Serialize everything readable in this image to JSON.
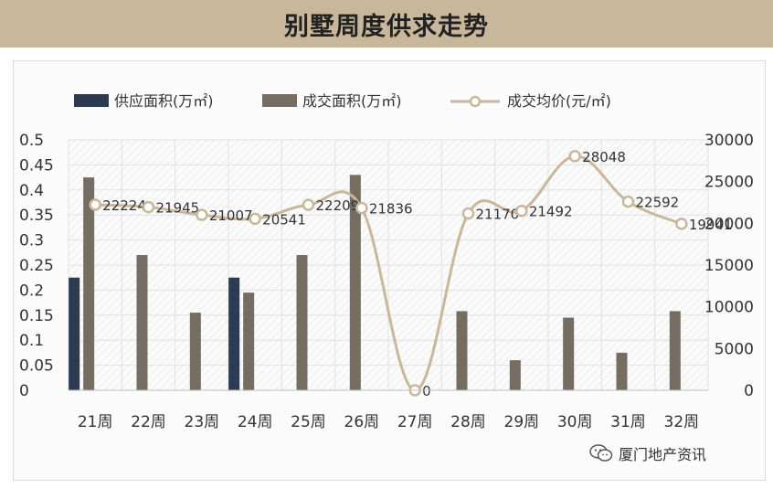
{
  "banner": {
    "title": "别墅周度供求走势"
  },
  "chart_data": {
    "type": "bar",
    "categories": [
      "21周",
      "22周",
      "23周",
      "24周",
      "25周",
      "26周",
      "27周",
      "28周",
      "29周",
      "30周",
      "31周",
      "32周"
    ],
    "series": [
      {
        "name": "供应面积(万㎡)",
        "type": "bar",
        "axis": "left",
        "color": "#2e3a52",
        "values": [
          0.225,
          0,
          0,
          0.225,
          0,
          0,
          0,
          0,
          0,
          0,
          0,
          0
        ]
      },
      {
        "name": "成交面积(万㎡)",
        "type": "bar",
        "axis": "left",
        "color": "#766d62",
        "values": [
          0.425,
          0.27,
          0.155,
          0.195,
          0.27,
          0.43,
          0,
          0.158,
          0.06,
          0.145,
          0.075,
          0.158
        ]
      },
      {
        "name": "成交均价(元/㎡)",
        "type": "line",
        "axis": "right",
        "color": "#c9b79b",
        "values": [
          22224,
          21945,
          21007,
          20541,
          22209,
          21836,
          0,
          21170,
          21492,
          28048,
          22592,
          19941
        ],
        "labels": [
          "22224",
          "21945",
          "21007",
          "20541",
          "22209",
          "21836",
          "0",
          "21170",
          "21492",
          "28048",
          "22592",
          "19941"
        ]
      }
    ],
    "y_left": {
      "min": 0,
      "max": 0.5,
      "ticks": [
        "0",
        "0.05",
        "0.1",
        "0.15",
        "0.2",
        "0.25",
        "0.3",
        "0.35",
        "0.4",
        "0.45",
        "0.5"
      ]
    },
    "y_right": {
      "min": 0,
      "max": 30000,
      "ticks": [
        "0",
        "5000",
        "10000",
        "15000",
        "20000",
        "25000",
        "30000"
      ]
    },
    "legend": {
      "position": "top-left"
    },
    "grid": true
  },
  "watermark": {
    "text": "厦门地产资讯",
    "icon": "wechat-icon"
  }
}
